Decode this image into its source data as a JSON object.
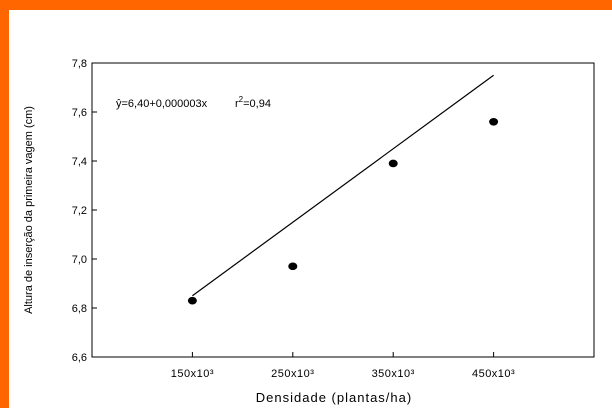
{
  "frame": {
    "border_color": "#FF6600",
    "background": "#FFFFFF"
  },
  "chart_data": {
    "type": "scatter",
    "xlabel": "Densidade (plantas/ha)",
    "ylabel": "Altura de inserção da primeira vagem (cm)",
    "x_categories": [
      "150x10³",
      "250x10³",
      "350x10³",
      "450x10³"
    ],
    "x": [
      150000,
      250000,
      350000,
      450000
    ],
    "y": [
      6.83,
      6.97,
      7.39,
      7.56
    ],
    "ylim": [
      6.6,
      7.8
    ],
    "xlim": [
      50000,
      550000
    ],
    "yticks": [
      "6,6",
      "6,8",
      "7,0",
      "7,2",
      "7,4",
      "7,6",
      "7,8"
    ],
    "regression": {
      "intercept": 6.4,
      "slope": 3e-06,
      "x_range": [
        150000,
        450000
      ]
    },
    "annotation": {
      "equation": "ŷ=6,40+0,000003x",
      "r2_base": "r",
      "r2_sup": "2",
      "r2_value": "=0,94"
    },
    "grid": false,
    "legend": "none",
    "marker_color": "#000000"
  }
}
